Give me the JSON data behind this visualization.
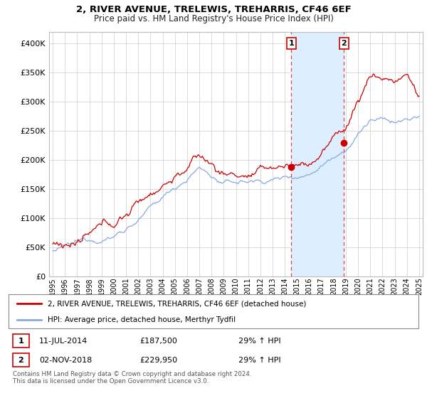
{
  "title": "2, RIVER AVENUE, TRELEWIS, TREHARRIS, CF46 6EF",
  "subtitle": "Price paid vs. HM Land Registry's House Price Index (HPI)",
  "background_color": "#ffffff",
  "grid_color": "#cccccc",
  "property_color": "#cc0000",
  "hpi_color": "#88aadd",
  "shade_color": "#ddeeff",
  "vline_color": "#dd4444",
  "sale1_date_num": 2014.53,
  "sale2_date_num": 2018.84,
  "sale1_price": 187500,
  "sale2_price": 229950,
  "legend_property": "2, RIVER AVENUE, TRELEWIS, TREHARRIS, CF46 6EF (detached house)",
  "legend_hpi": "HPI: Average price, detached house, Merthyr Tydfil",
  "annotation1_date": "11-JUL-2014",
  "annotation1_price": "£187,500",
  "annotation1_hpi": "29% ↑ HPI",
  "annotation2_date": "02-NOV-2018",
  "annotation2_price": "£229,950",
  "annotation2_hpi": "29% ↑ HPI",
  "footer": "Contains HM Land Registry data © Crown copyright and database right 2024.\nThis data is licensed under the Open Government Licence v3.0.",
  "ylim": [
    0,
    420000
  ],
  "xlim_left": 1994.7,
  "xlim_right": 2025.3,
  "yticks": [
    0,
    50000,
    100000,
    150000,
    200000,
    250000,
    300000,
    350000,
    400000
  ],
  "ytick_labels": [
    "£0",
    "£50K",
    "£100K",
    "£150K",
    "£200K",
    "£250K",
    "£300K",
    "£350K",
    "£400K"
  ]
}
